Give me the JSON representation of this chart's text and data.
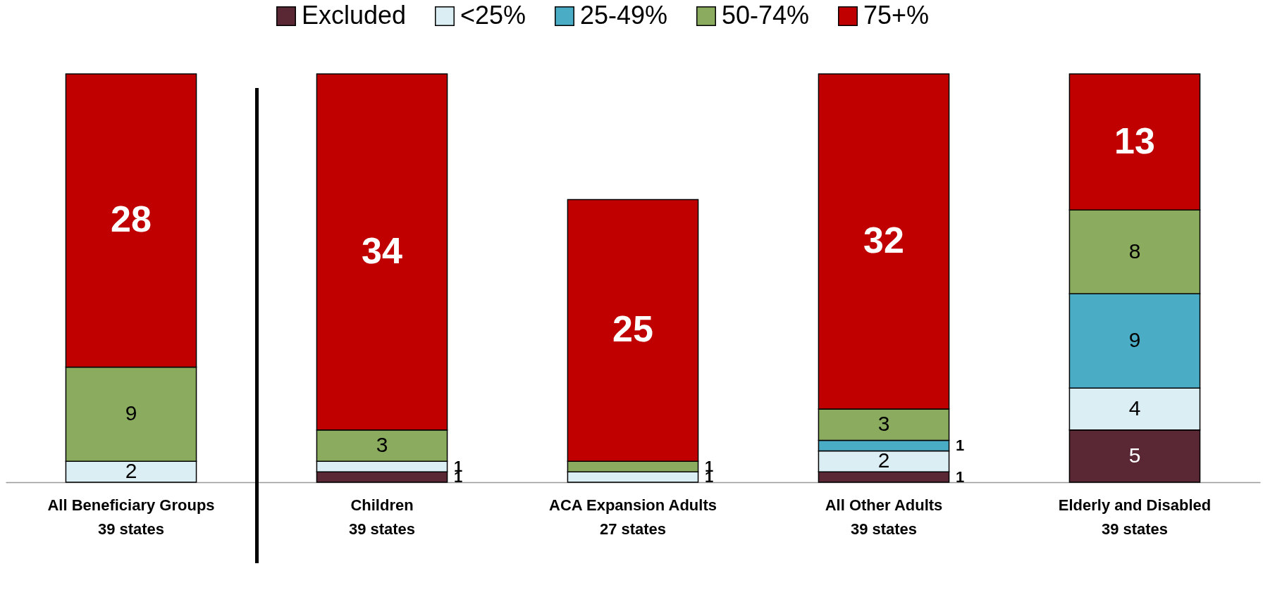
{
  "chart_data": {
    "type": "bar",
    "stacked": true,
    "data_labels": true,
    "legend": "top",
    "categories": [
      "All Beneficiary Groups\n39 states",
      "Children\n39 states",
      "ACA Expansion Adults\n27 states",
      "All Other Adults\n39 states",
      "Elderly and Disabled\n39 states"
    ],
    "series": [
      {
        "name": "Excluded",
        "color": "#5a2735",
        "values": [
          null,
          1,
          null,
          1,
          5
        ]
      },
      {
        "name": "<25%",
        "color": "#dbeef4",
        "values": [
          2,
          1,
          1,
          2,
          4
        ]
      },
      {
        "name": "25-49%",
        "color": "#4bacc6",
        "values": [
          null,
          null,
          null,
          1,
          9
        ]
      },
      {
        "name": "50-74%",
        "color": "#8bab5f",
        "values": [
          9,
          3,
          1,
          3,
          8
        ]
      },
      {
        "name": "75+%",
        "color": "#c00000",
        "values": [
          28,
          34,
          25,
          32,
          13
        ]
      }
    ]
  }
}
